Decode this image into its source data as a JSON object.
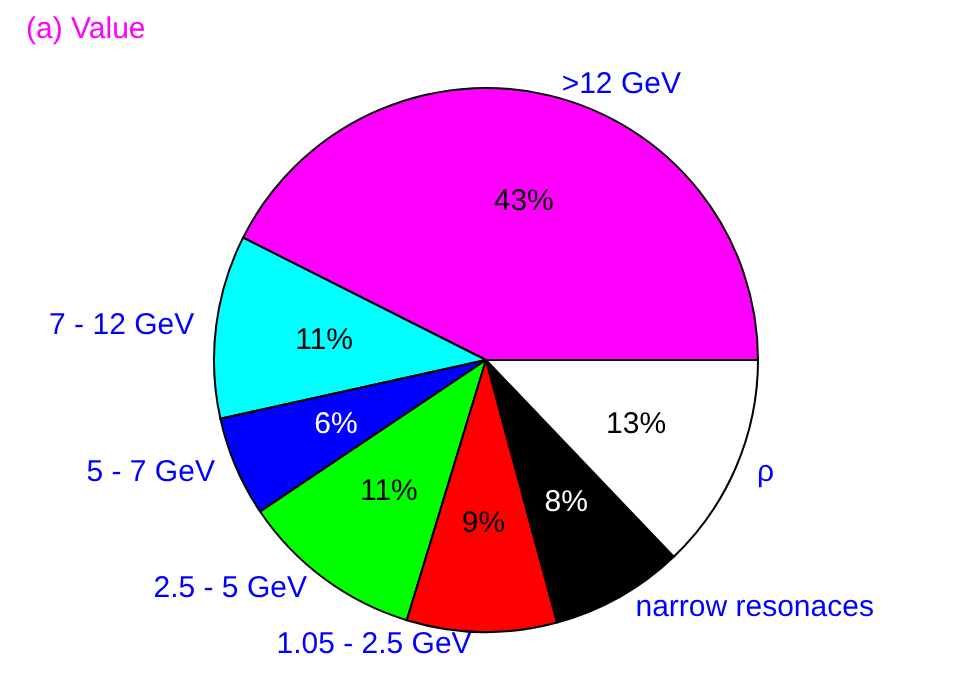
{
  "chart_data": {
    "type": "pie",
    "title": "(a) Value",
    "categories": [
      ">12 GeV",
      "7 - 12 GeV",
      "5 - 7 GeV",
      "2.5 - 5 GeV",
      "1.05 - 2.5 GeV",
      "narrow resonaces",
      "ρ"
    ],
    "values": [
      43,
      11,
      6,
      11,
      9,
      8,
      13
    ],
    "colors": [
      "#ff00ff",
      "#00ffff",
      "#0000ff",
      "#00ff00",
      "#ff0000",
      "#000000",
      "#ffffff"
    ],
    "value_labels": [
      "43%",
      "11%",
      "6%",
      "11%",
      "9%",
      "8%",
      "13%"
    ],
    "legend": false
  }
}
